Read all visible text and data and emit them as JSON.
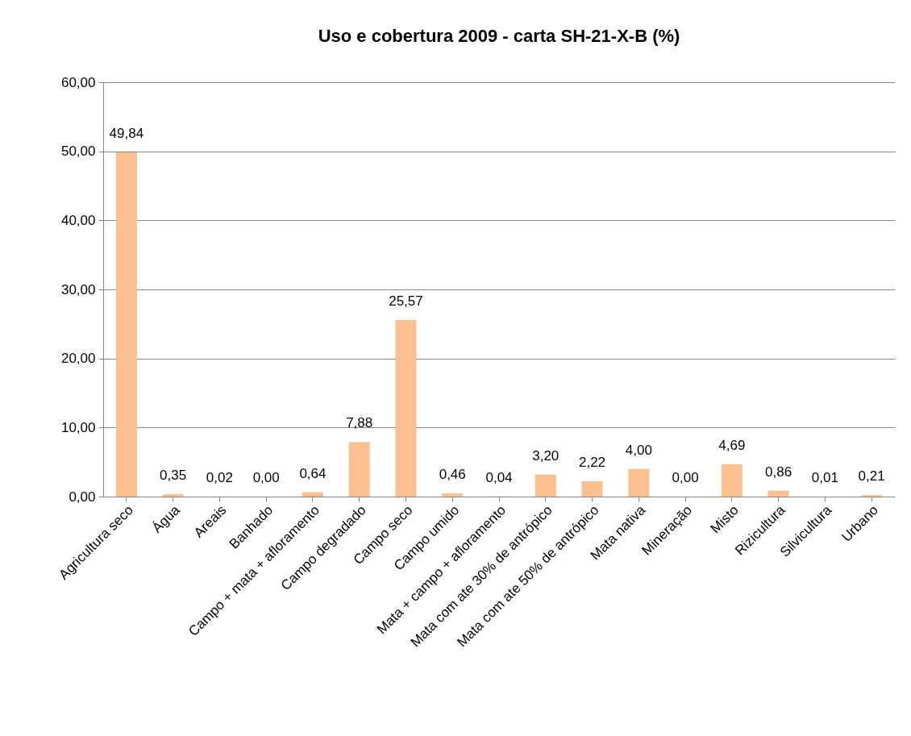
{
  "chart_data": {
    "type": "bar",
    "title": "Uso e cobertura 2009 - carta SH-21-X-B (%)",
    "categories": [
      "Agricultura seco",
      "Água",
      "Areais",
      "Banhado",
      "Campo + mata + afloramento",
      "Campo degradado",
      "Campo seco",
      "Campo umido",
      "Mata + campo + afloramento",
      "Mata com ate 30% de antrópico",
      "Mata com ate 50% de antrópico",
      "Mata nativa",
      "Mineração",
      "Misto",
      "Rizicultura",
      "Silvicultura",
      "Urbano"
    ],
    "values": [
      49.84,
      0.35,
      0.02,
      0.0,
      0.64,
      7.88,
      25.57,
      0.46,
      0.04,
      3.2,
      2.22,
      4.0,
      0.0,
      4.69,
      0.86,
      0.01,
      0.21
    ],
    "value_labels": [
      "49,84",
      "0,35",
      "0,02",
      "0,00",
      "0,64",
      "7,88",
      "25,57",
      "0,46",
      "0,04",
      "3,20",
      "2,22",
      "4,00",
      "0,00",
      "4,69",
      "0,86",
      "0,01",
      "0,21"
    ],
    "color": "#fac090",
    "ylim": [
      0,
      60
    ],
    "yticks": [
      {
        "value": 0,
        "label": "0,00"
      },
      {
        "value": 10,
        "label": "10,00"
      },
      {
        "value": 20,
        "label": "20,00"
      },
      {
        "value": 30,
        "label": "30,00"
      },
      {
        "value": 40,
        "label": "40,00"
      },
      {
        "value": 50,
        "label": "50,00"
      },
      {
        "value": 60,
        "label": "60,00"
      }
    ],
    "grid": "y"
  }
}
